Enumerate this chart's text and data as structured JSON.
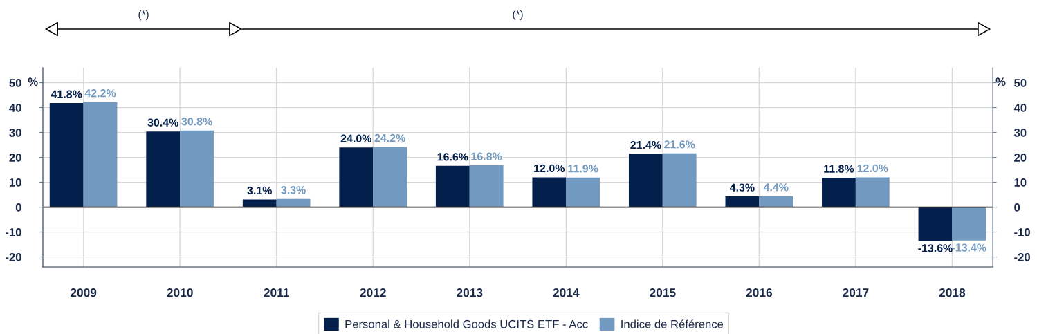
{
  "chart_data": {
    "type": "bar",
    "categories": [
      "2009",
      "2010",
      "2011",
      "2012",
      "2013",
      "2014",
      "2015",
      "2016",
      "2017",
      "2018"
    ],
    "series": [
      {
        "name": "Personal & Household Goods UCITS ETF - Acc",
        "color": "#031f4b",
        "values": [
          41.8,
          30.4,
          3.1,
          24.0,
          16.6,
          12.0,
          21.4,
          4.3,
          11.8,
          -13.6
        ],
        "value_labels": [
          "41.8%",
          "30.4%",
          "3.1%",
          "24.0%",
          "16.6%",
          "12.0%",
          "21.4%",
          "4.3%",
          "11.8%",
          "-13.6%"
        ]
      },
      {
        "name": "Indice de Référence",
        "color": "#7299bf",
        "values": [
          42.2,
          30.8,
          3.3,
          24.2,
          16.8,
          11.9,
          21.6,
          4.4,
          12.0,
          -13.4
        ],
        "value_labels": [
          "42.2%",
          "30.8%",
          "3.3%",
          "24.2%",
          "16.8%",
          "11.9%",
          "21.6%",
          "4.4%",
          "12.0%",
          "-13.4%"
        ]
      }
    ],
    "ylabel": "%",
    "y2label": "%",
    "ylim": [
      -24,
      56
    ],
    "yticks": [
      -20,
      -10,
      0,
      10,
      20,
      30,
      40,
      50
    ],
    "y2lim": [
      -24,
      56
    ],
    "y2ticks": [
      -20,
      -10,
      0,
      10,
      20,
      30,
      40,
      50
    ],
    "ref_lines": [
      {
        "axis": "y",
        "value": 0,
        "color": "#333333"
      }
    ],
    "grid": true,
    "legend": "bottom",
    "annotations": [
      "(*)",
      "(*)"
    ]
  }
}
